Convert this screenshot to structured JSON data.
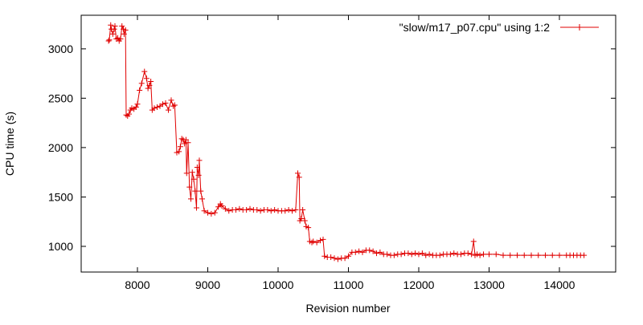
{
  "chart_data": {
    "type": "line",
    "title": "",
    "xlabel": "Revision number",
    "ylabel": "CPU time (s)",
    "xlim": [
      7200,
      14800
    ],
    "ylim": [
      740,
      3340
    ],
    "grid": false,
    "legend_position": "top-right",
    "x_ticks": [
      {
        "value": 8000,
        "label": "8000"
      },
      {
        "value": 9000,
        "label": "9000"
      },
      {
        "value": 10000,
        "label": "10000"
      },
      {
        "value": 11000,
        "label": "11000"
      },
      {
        "value": 12000,
        "label": "12000"
      },
      {
        "value": 13000,
        "label": "13000"
      },
      {
        "value": 14000,
        "label": "14000"
      }
    ],
    "y_ticks": [
      {
        "value": 1000,
        "label": "1000"
      },
      {
        "value": 1500,
        "label": "1500"
      },
      {
        "value": 2000,
        "label": "2000"
      },
      {
        "value": 2500,
        "label": "2500"
      },
      {
        "value": 3000,
        "label": "3000"
      }
    ],
    "series": [
      {
        "name": "\"slow/m17_p07.cpu\" using 1:2",
        "color": "#e00000",
        "marker": "plus",
        "points": [
          [
            7590,
            3080
          ],
          [
            7600,
            3090
          ],
          [
            7620,
            3240
          ],
          [
            7630,
            3200
          ],
          [
            7650,
            3150
          ],
          [
            7670,
            3200
          ],
          [
            7680,
            3230
          ],
          [
            7700,
            3100
          ],
          [
            7720,
            3110
          ],
          [
            7740,
            3080
          ],
          [
            7760,
            3100
          ],
          [
            7780,
            3230
          ],
          [
            7800,
            3200
          ],
          [
            7810,
            3150
          ],
          [
            7830,
            3190
          ],
          [
            7840,
            2330
          ],
          [
            7860,
            2320
          ],
          [
            7880,
            2340
          ],
          [
            7900,
            2380
          ],
          [
            7920,
            2400
          ],
          [
            7950,
            2390
          ],
          [
            7980,
            2410
          ],
          [
            8000,
            2440
          ],
          [
            8030,
            2580
          ],
          [
            8060,
            2650
          ],
          [
            8100,
            2770
          ],
          [
            8130,
            2700
          ],
          [
            8150,
            2600
          ],
          [
            8170,
            2630
          ],
          [
            8190,
            2670
          ],
          [
            8210,
            2380
          ],
          [
            8240,
            2400
          ],
          [
            8280,
            2410
          ],
          [
            8320,
            2420
          ],
          [
            8360,
            2440
          ],
          [
            8400,
            2450
          ],
          [
            8440,
            2380
          ],
          [
            8480,
            2480
          ],
          [
            8510,
            2420
          ],
          [
            8530,
            2430
          ],
          [
            8560,
            1950
          ],
          [
            8590,
            1960
          ],
          [
            8610,
            2010
          ],
          [
            8630,
            2090
          ],
          [
            8650,
            2080
          ],
          [
            8670,
            2040
          ],
          [
            8690,
            2080
          ],
          [
            8700,
            1740
          ],
          [
            8720,
            2050
          ],
          [
            8740,
            1600
          ],
          [
            8760,
            1480
          ],
          [
            8780,
            1750
          ],
          [
            8800,
            1680
          ],
          [
            8820,
            1560
          ],
          [
            8840,
            1390
          ],
          [
            8850,
            1800
          ],
          [
            8870,
            1720
          ],
          [
            8880,
            1870
          ],
          [
            8900,
            1560
          ],
          [
            8920,
            1480
          ],
          [
            8950,
            1360
          ],
          [
            9000,
            1340
          ],
          [
            9050,
            1330
          ],
          [
            9100,
            1340
          ],
          [
            9150,
            1400
          ],
          [
            9180,
            1430
          ],
          [
            9200,
            1410
          ],
          [
            9250,
            1380
          ],
          [
            9300,
            1360
          ],
          [
            9350,
            1370
          ],
          [
            9400,
            1370
          ],
          [
            9450,
            1380
          ],
          [
            9500,
            1370
          ],
          [
            9550,
            1370
          ],
          [
            9600,
            1380
          ],
          [
            9650,
            1370
          ],
          [
            9700,
            1370
          ],
          [
            9750,
            1360
          ],
          [
            9800,
            1370
          ],
          [
            9850,
            1370
          ],
          [
            9900,
            1360
          ],
          [
            9950,
            1370
          ],
          [
            10000,
            1360
          ],
          [
            10050,
            1360
          ],
          [
            10100,
            1360
          ],
          [
            10150,
            1370
          ],
          [
            10200,
            1360
          ],
          [
            10250,
            1370
          ],
          [
            10280,
            1740
          ],
          [
            10300,
            1700
          ],
          [
            10310,
            1260
          ],
          [
            10330,
            1280
          ],
          [
            10350,
            1370
          ],
          [
            10380,
            1260
          ],
          [
            10400,
            1200
          ],
          [
            10430,
            1190
          ],
          [
            10450,
            1050
          ],
          [
            10480,
            1040
          ],
          [
            10500,
            1050
          ],
          [
            10550,
            1040
          ],
          [
            10600,
            1060
          ],
          [
            10640,
            1070
          ],
          [
            10660,
            900
          ],
          [
            10700,
            890
          ],
          [
            10750,
            890
          ],
          [
            10800,
            880
          ],
          [
            10850,
            870
          ],
          [
            10900,
            880
          ],
          [
            10950,
            880
          ],
          [
            11000,
            900
          ],
          [
            11050,
            940
          ],
          [
            11100,
            940
          ],
          [
            11150,
            950
          ],
          [
            11200,
            940
          ],
          [
            11250,
            960
          ],
          [
            11300,
            960
          ],
          [
            11350,
            950
          ],
          [
            11400,
            930
          ],
          [
            11450,
            940
          ],
          [
            11500,
            920
          ],
          [
            11550,
            920
          ],
          [
            11600,
            910
          ],
          [
            11650,
            910
          ],
          [
            11700,
            920
          ],
          [
            11750,
            920
          ],
          [
            11800,
            930
          ],
          [
            11850,
            930
          ],
          [
            11900,
            920
          ],
          [
            11950,
            930
          ],
          [
            12000,
            920
          ],
          [
            12050,
            930
          ],
          [
            12100,
            910
          ],
          [
            12150,
            920
          ],
          [
            12200,
            910
          ],
          [
            12250,
            910
          ],
          [
            12300,
            910
          ],
          [
            12350,
            920
          ],
          [
            12400,
            920
          ],
          [
            12450,
            920
          ],
          [
            12500,
            930
          ],
          [
            12550,
            920
          ],
          [
            12600,
            920
          ],
          [
            12650,
            930
          ],
          [
            12700,
            930
          ],
          [
            12750,
            920
          ],
          [
            12780,
            1050
          ],
          [
            12800,
            910
          ],
          [
            12830,
            920
          ],
          [
            12870,
            910
          ],
          [
            12920,
            920
          ],
          [
            13000,
            920
          ],
          [
            13100,
            920
          ],
          [
            13200,
            910
          ],
          [
            13300,
            910
          ],
          [
            13400,
            910
          ],
          [
            13500,
            910
          ],
          [
            13600,
            910
          ],
          [
            13700,
            910
          ],
          [
            13800,
            910
          ],
          [
            13900,
            910
          ],
          [
            14000,
            910
          ],
          [
            14100,
            910
          ],
          [
            14150,
            910
          ],
          [
            14200,
            910
          ],
          [
            14250,
            910
          ],
          [
            14300,
            910
          ],
          [
            14350,
            910
          ]
        ]
      }
    ]
  }
}
